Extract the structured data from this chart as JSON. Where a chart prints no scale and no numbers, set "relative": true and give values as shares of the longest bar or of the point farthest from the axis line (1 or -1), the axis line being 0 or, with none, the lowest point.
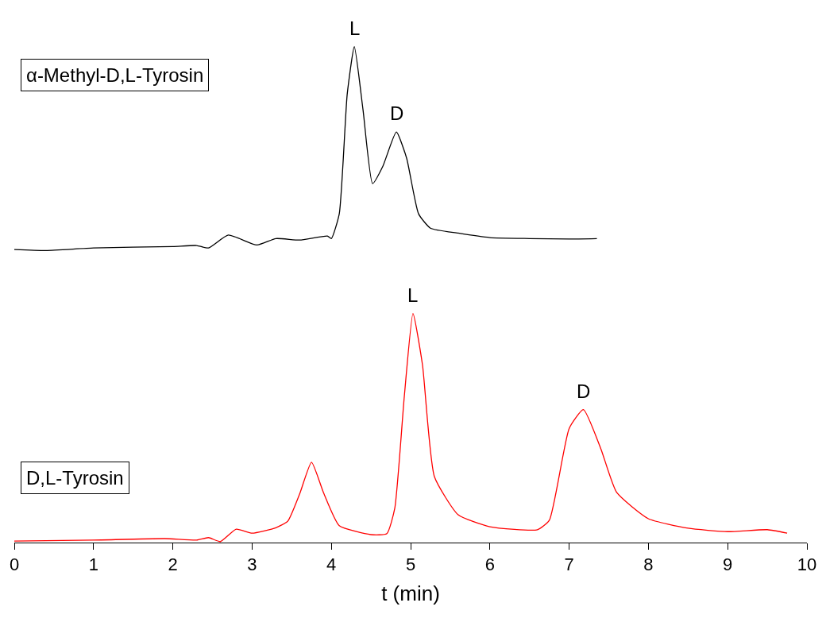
{
  "chart_data": {
    "type": "line",
    "relative": true,
    "xlabel": "t (min)",
    "xlim": [
      0,
      10
    ],
    "xticks": [
      0,
      1,
      2,
      3,
      4,
      5,
      6,
      7,
      8,
      9,
      10
    ],
    "legend": false,
    "marker": "none",
    "line_style": "solid",
    "series": [
      {
        "name": "α-Methyl-D,L-Tyrosin",
        "color": "#000000",
        "x": [
          0,
          0.4,
          1,
          2,
          2.3,
          2.45,
          2.7,
          3.06,
          3.3,
          3.6,
          3.95,
          4.0,
          4.1,
          4.2,
          4.29,
          4.4,
          4.52,
          4.65,
          4.82,
          4.95,
          5.1,
          5.25,
          5.6,
          6,
          6.5,
          7,
          7.35
        ],
        "values": [
          0.591,
          0.589,
          0.594,
          0.597,
          0.599,
          0.594,
          0.62,
          0.6,
          0.613,
          0.61,
          0.618,
          0.613,
          0.663,
          0.904,
          1.0,
          0.872,
          0.724,
          0.759,
          0.828,
          0.775,
          0.663,
          0.634,
          0.624,
          0.615,
          0.613,
          0.612,
          0.613
        ]
      },
      {
        "name": "D,L-Tyrosin",
        "color": "#ff0000",
        "x": [
          0,
          1,
          1.9,
          2.3,
          2.45,
          2.6,
          2.8,
          3.0,
          3.3,
          3.45,
          3.6,
          3.75,
          3.9,
          4.1,
          4.5,
          4.7,
          4.8,
          4.92,
          5.03,
          5.15,
          5.3,
          5.6,
          6,
          6.6,
          6.75,
          7.0,
          7.18,
          7.4,
          7.6,
          8,
          8.5,
          9,
          9.5,
          9.75
        ],
        "values": [
          0.003,
          0.005,
          0.008,
          0.005,
          0.01,
          0.002,
          0.027,
          0.019,
          0.03,
          0.043,
          0.098,
          0.162,
          0.101,
          0.034,
          0.016,
          0.018,
          0.069,
          0.294,
          0.462,
          0.358,
          0.133,
          0.056,
          0.032,
          0.026,
          0.045,
          0.23,
          0.268,
          0.189,
          0.101,
          0.048,
          0.029,
          0.022,
          0.026,
          0.019
        ]
      }
    ],
    "annotations": [
      {
        "text": "L",
        "x": 4.29,
        "y": 1.0
      },
      {
        "text": "D",
        "x": 4.82,
        "y": 0.828
      },
      {
        "text": "L",
        "x": 5.03,
        "y": 0.462
      },
      {
        "text": "D",
        "x": 7.18,
        "y": 0.268
      }
    ]
  }
}
